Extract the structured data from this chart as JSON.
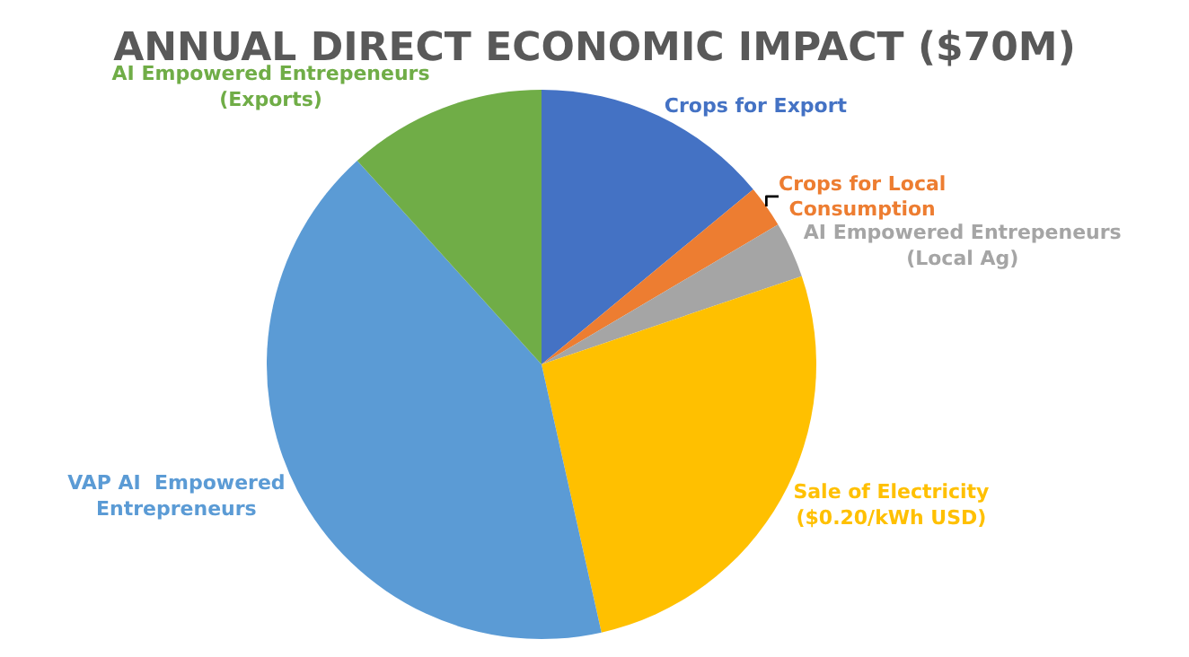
{
  "chart_data": {
    "type": "pie",
    "title": "ANNUAL DIRECT ECONOMIC IMPACT ($70M)",
    "categories": [
      "Crops for Export",
      "Crops for Local Consumption",
      "AI Empowered Entrepeneurs (Local Ag)",
      "Sale of Electricity ($0.20/kWh USD)",
      "VAP AI  Empowered Entrepreneurs",
      "AI Empowered Entrepeneurs (Exports)"
    ],
    "values": [
      14,
      2.5,
      3.3,
      26.7,
      41.8,
      11.7
    ],
    "colors": [
      "#4472c4",
      "#ed7d31",
      "#a5a5a5",
      "#ffc000",
      "#5b9bd5",
      "#70ad47"
    ],
    "legend": false
  }
}
